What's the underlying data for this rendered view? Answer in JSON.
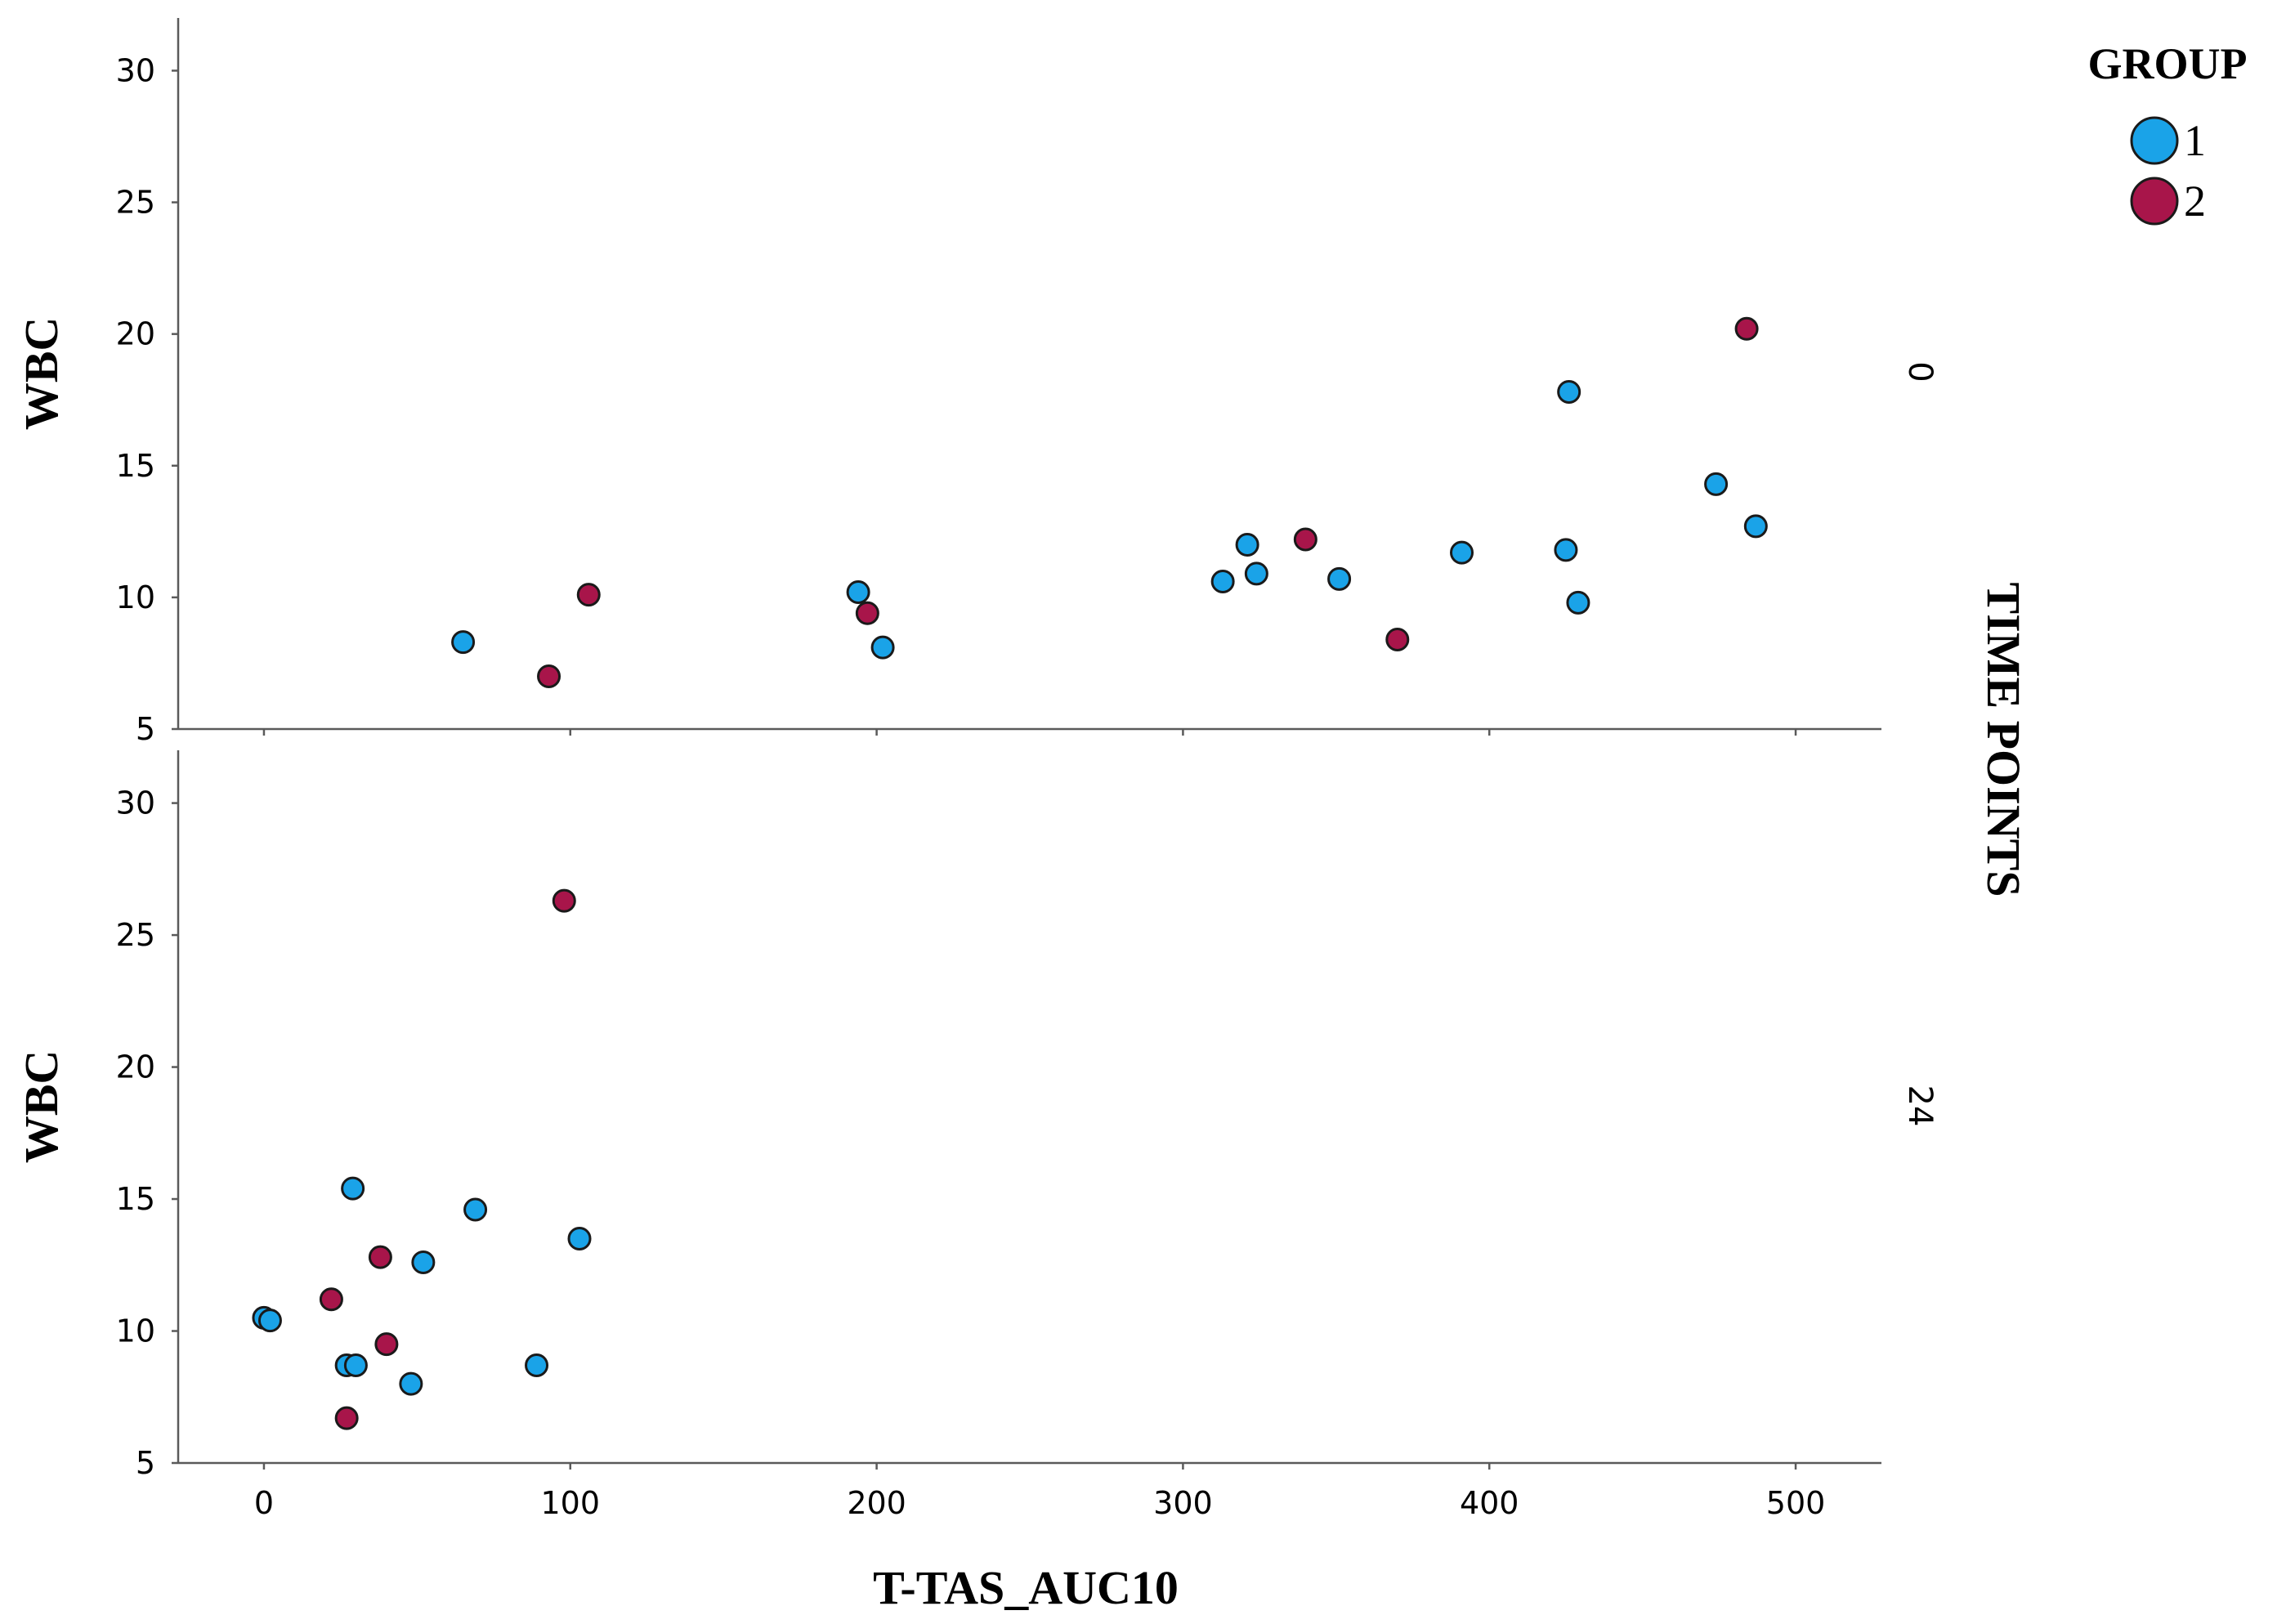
{
  "chart_data": {
    "type": "scatter",
    "xlabel": "T-TAS_AUC10",
    "ylabel": "WBC",
    "row_facet_title": "TIME POINTS",
    "xlim": [
      -28,
      528
    ],
    "ylim": [
      5,
      32
    ],
    "x_ticks": [
      "0",
      "100",
      "200",
      "300",
      "400",
      "500"
    ],
    "y_ticks": [
      "5",
      "10",
      "15",
      "20",
      "25",
      "30"
    ],
    "legend": {
      "title": "GROUP",
      "position": "top-right",
      "items": [
        {
          "label": "1",
          "color": "#1aa3e8"
        },
        {
          "label": "2",
          "color": "#a8154a"
        }
      ]
    },
    "grid": false,
    "panels": [
      {
        "facet_label": "0",
        "series": [
          {
            "name": "1",
            "color": "#1aa3e8",
            "points": [
              [
                65,
                8.3
              ],
              [
                194,
                10.2
              ],
              [
                202,
                8.1
              ],
              [
                313,
                10.6
              ],
              [
                321,
                12.0
              ],
              [
                324,
                10.9
              ],
              [
                351,
                10.7
              ],
              [
                391,
                11.7
              ],
              [
                425,
                11.8
              ],
              [
                426,
                17.8
              ],
              [
                429,
                9.8
              ],
              [
                474,
                14.3
              ],
              [
                487,
                12.7
              ]
            ]
          },
          {
            "name": "2",
            "color": "#a8154a",
            "points": [
              [
                93,
                7.0
              ],
              [
                106,
                10.1
              ],
              [
                197,
                9.4
              ],
              [
                340,
                12.2
              ],
              [
                370,
                8.4
              ],
              [
                484,
                20.2
              ]
            ]
          }
        ]
      },
      {
        "facet_label": "24",
        "series": [
          {
            "name": "1",
            "color": "#1aa3e8",
            "points": [
              [
                0,
                10.5
              ],
              [
                2,
                10.4
              ],
              [
                27,
                8.7
              ],
              [
                29,
                15.4
              ],
              [
                30,
                8.7
              ],
              [
                48,
                8.0
              ],
              [
                52,
                12.6
              ],
              [
                69,
                14.6
              ],
              [
                89,
                8.7
              ],
              [
                103,
                13.5
              ]
            ]
          },
          {
            "name": "2",
            "color": "#a8154a",
            "points": [
              [
                22,
                11.2
              ],
              [
                27,
                6.7
              ],
              [
                38,
                12.8
              ],
              [
                40,
                9.5
              ],
              [
                98,
                26.3
              ]
            ]
          }
        ]
      }
    ]
  }
}
